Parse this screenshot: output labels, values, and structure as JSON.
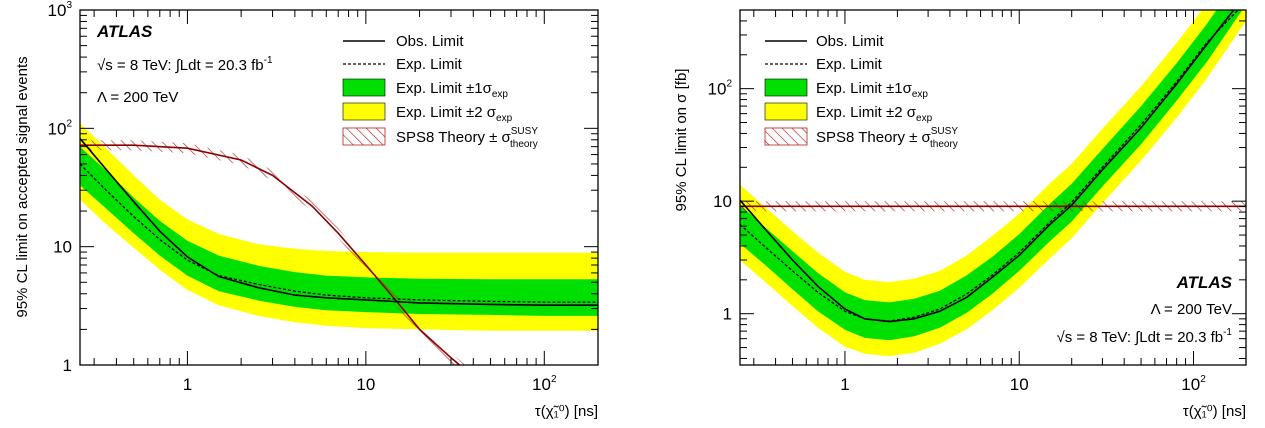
{
  "chart_data": [
    {
      "type": "line",
      "ylabel": "95% CL limit on accepted signal events",
      "xlabel": "τ(χ̃₁⁰) [ns]",
      "x_scale": "log",
      "y_scale": "log",
      "xlim": [
        0.25,
        200
      ],
      "ylim": [
        1,
        1000
      ],
      "x_ticks": [
        "1",
        "10",
        "10"
      ],
      "x_tick_sup": [
        "",
        "",
        "2"
      ],
      "y_ticks": [
        "1",
        "10",
        "10",
        "10"
      ],
      "y_tick_sup": [
        "",
        "",
        "2",
        "3"
      ],
      "grid": false,
      "legend_position": "top-right",
      "legend": {
        "obs": "Obs. Limit",
        "exp": "Exp. Limit",
        "one_sigma": "Exp. Limit ±1σ",
        "one_sigma_sub": "exp",
        "two_sigma": "Exp. Limit ±2 σ",
        "two_sigma_sub": "exp",
        "theory": "SPS8 Theory ± σ",
        "theory_sup": "SUSY",
        "theory_sub": "theory"
      },
      "annotations": {
        "atlas": "ATLAS",
        "energy": "√s = 8 TeV: ∫Ldt = 20.3 fb",
        "energy_sup": "-1",
        "lambda": "Λ = 200 TeV"
      },
      "series": [
        {
          "name": "Obs. Limit",
          "x": [
            0.25,
            0.35,
            0.5,
            0.7,
            1.0,
            1.5,
            2.5,
            4,
            6,
            10,
            20,
            50,
            100,
            200
          ],
          "y": [
            82,
            45,
            24,
            13.5,
            8.2,
            5.6,
            4.5,
            3.9,
            3.7,
            3.55,
            3.35,
            3.25,
            3.2,
            3.2
          ]
        },
        {
          "name": "Exp. Limit",
          "x": [
            0.25,
            0.35,
            0.5,
            0.7,
            1.0,
            1.5,
            2.5,
            4,
            6,
            10,
            20,
            50,
            100,
            200
          ],
          "y": [
            50,
            30,
            18,
            11.5,
            7.7,
            5.7,
            4.8,
            4.2,
            3.9,
            3.7,
            3.55,
            3.45,
            3.4,
            3.4
          ]
        },
        {
          "name": "Exp. Limit ±1σexp",
          "x": [
            0.25,
            0.35,
            0.5,
            0.7,
            1.0,
            1.5,
            2.5,
            4,
            6,
            10,
            20,
            50,
            100,
            200
          ],
          "y_low": [
            33,
            21,
            13,
            8.4,
            5.7,
            4.2,
            3.5,
            3.1,
            2.9,
            2.8,
            2.7,
            2.65,
            2.6,
            2.6
          ],
          "y_high": [
            70,
            44,
            26,
            16.5,
            11.2,
            8.4,
            6.9,
            6.1,
            5.7,
            5.5,
            5.35,
            5.3,
            5.3,
            5.3
          ]
        },
        {
          "name": "Exp. Limit ±2σexp",
          "x": [
            0.25,
            0.35,
            0.5,
            0.7,
            1.0,
            1.5,
            2.5,
            4,
            6,
            10,
            20,
            50,
            100,
            200
          ],
          "y_low": [
            25,
            15.5,
            9.8,
            6.4,
            4.3,
            3.2,
            2.6,
            2.3,
            2.15,
            2.05,
            2.0,
            1.95,
            1.95,
            1.95
          ],
          "y_high": [
            110,
            68,
            40,
            25,
            17,
            12.8,
            10.5,
            9.6,
            9.2,
            9.0,
            8.9,
            8.9,
            8.9,
            8.9
          ]
        },
        {
          "name": "SPS8 Theory ± σSUSYtheory",
          "x": [
            0.25,
            0.5,
            1.0,
            2.0,
            3.0,
            5.0,
            7.0,
            10,
            15,
            20,
            30,
            40
          ],
          "y": [
            72,
            72,
            68,
            54,
            40,
            22,
            13,
            7.0,
            3.4,
            2.0,
            1.15,
            0.8
          ]
        }
      ]
    },
    {
      "type": "line",
      "ylabel": "95% CL limit on σ [fb]",
      "xlabel": "τ(χ̃₁⁰) [ns]",
      "x_scale": "log",
      "y_scale": "log",
      "xlim": [
        0.25,
        200
      ],
      "ylim": [
        0.35,
        500
      ],
      "x_ticks": [
        "1",
        "10",
        "10"
      ],
      "x_tick_sup": [
        "",
        "",
        "2"
      ],
      "y_ticks": [
        "1",
        "10",
        "10"
      ],
      "y_tick_sup": [
        "",
        "",
        "2"
      ],
      "grid": false,
      "legend_position": "top-left",
      "legend": {
        "obs": "Obs. Limit",
        "exp": "Exp. Limit",
        "one_sigma": "Exp. Limit ±1σ",
        "one_sigma_sub": "exp",
        "two_sigma": "Exp. Limit ±2 σ",
        "two_sigma_sub": "exp",
        "theory": "SPS8 Theory ± σ",
        "theory_sup": "SUSY",
        "theory_sub": "theory"
      },
      "annotations": {
        "atlas": "ATLAS",
        "lambda": "Λ = 200 TeV",
        "energy": "√s = 8 TeV: ∫Ldt = 20.3 fb",
        "energy_sup": "-1"
      },
      "series": [
        {
          "name": "Obs. Limit",
          "x": [
            0.25,
            0.35,
            0.5,
            0.7,
            1.0,
            1.3,
            1.8,
            2.5,
            3.5,
            5,
            7,
            10,
            15,
            20,
            30,
            50,
            80,
            120,
            170
          ],
          "y": [
            10.2,
            5.6,
            3.0,
            1.75,
            1.1,
            0.9,
            0.85,
            0.9,
            1.05,
            1.4,
            2.1,
            3.3,
            6.2,
            9.2,
            19,
            45,
            110,
            250,
            500
          ]
        },
        {
          "name": "Exp. Limit",
          "x": [
            0.25,
            0.35,
            0.5,
            0.7,
            1.0,
            1.3,
            1.8,
            2.5,
            3.5,
            5,
            7,
            10,
            15,
            20,
            30,
            50,
            80,
            120,
            180
          ],
          "y": [
            6.2,
            3.9,
            2.4,
            1.55,
            1.05,
            0.9,
            0.86,
            0.93,
            1.1,
            1.5,
            2.2,
            3.5,
            6.5,
            9.8,
            20,
            48,
            115,
            260,
            500
          ]
        },
        {
          "name": "Exp. Limit ±1σexp",
          "x": [
            0.25,
            0.35,
            0.5,
            0.7,
            1.0,
            1.3,
            1.8,
            2.5,
            3.5,
            5,
            7,
            10,
            15,
            20,
            30,
            50,
            80,
            120,
            200
          ],
          "y_low": [
            4.2,
            2.7,
            1.65,
            1.05,
            0.72,
            0.61,
            0.58,
            0.63,
            0.75,
            1.02,
            1.5,
            2.4,
            4.4,
            6.6,
            13.5,
            32,
            78,
            175,
            560
          ],
          "y_high": [
            9.3,
            5.8,
            3.6,
            2.3,
            1.55,
            1.32,
            1.26,
            1.36,
            1.6,
            2.2,
            3.2,
            5.1,
            9.5,
            14.3,
            29,
            70,
            168,
            380,
            1200
          ]
        },
        {
          "name": "Exp. Limit ±2σexp",
          "x": [
            0.25,
            0.35,
            0.5,
            0.7,
            1.0,
            1.3,
            1.8,
            2.5,
            3.5,
            5,
            7,
            10,
            15,
            20,
            30,
            50,
            80,
            120,
            200
          ],
          "y_low": [
            3.0,
            1.9,
            1.17,
            0.75,
            0.51,
            0.44,
            0.42,
            0.45,
            0.54,
            0.73,
            1.07,
            1.7,
            3.1,
            4.7,
            9.6,
            23,
            55,
            125,
            400
          ],
          "y_high": [
            14,
            8.8,
            5.4,
            3.5,
            2.35,
            2.0,
            1.9,
            2.05,
            2.4,
            3.3,
            4.9,
            7.7,
            14.4,
            21.5,
            44,
            105,
            255,
            575,
            1800
          ]
        },
        {
          "name": "SPS8 Theory ± σSUSYtheory",
          "x": [
            0.25,
            200
          ],
          "y": [
            9.0,
            9.0
          ]
        }
      ]
    }
  ]
}
